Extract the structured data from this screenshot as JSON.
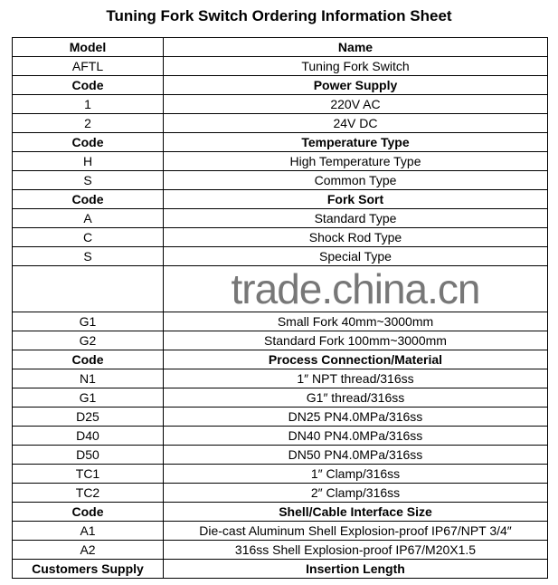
{
  "title": "Tuning Fork Switch Ordering Information Sheet",
  "rows": [
    {
      "code": "Model",
      "name": "Name",
      "bold": true
    },
    {
      "code": "AFTL",
      "name": "Tuning Fork Switch"
    },
    {
      "code": "Code",
      "name": "Power Supply",
      "bold": true
    },
    {
      "code": "1",
      "name": "220V AC"
    },
    {
      "code": "2",
      "name": "24V DC"
    },
    {
      "code": "Code",
      "name": "Temperature Type",
      "bold": true
    },
    {
      "code": "H",
      "name": "High Temperature Type"
    },
    {
      "code": "S",
      "name": "Common Type"
    },
    {
      "code": "Code",
      "name": "Fork Sort",
      "bold": true
    },
    {
      "code": "A",
      "name": "Standard Type"
    },
    {
      "code": "C",
      "name": "Shock Rod Type"
    },
    {
      "code": "S",
      "name": "Special Type"
    },
    {
      "code": "",
      "name": ""
    },
    {
      "code": "G1",
      "name": "Small Fork 40mm~3000mm"
    },
    {
      "code": "G2",
      "name": "Standard Fork 100mm~3000mm"
    },
    {
      "code": "Code",
      "name": "Process Connection/Material",
      "bold": true
    },
    {
      "code": "N1",
      "name": "1″ NPT thread/316ss"
    },
    {
      "code": "G1",
      "name": "G1″ thread/316ss"
    },
    {
      "code": "D25",
      "name": "DN25 PN4.0MPa/316ss"
    },
    {
      "code": "D40",
      "name": "DN40 PN4.0MPa/316ss"
    },
    {
      "code": "D50",
      "name": "DN50 PN4.0MPa/316ss"
    },
    {
      "code": "TC1",
      "name": "1″ Clamp/316ss"
    },
    {
      "code": "TC2",
      "name": "2″ Clamp/316ss"
    },
    {
      "code": "Code",
      "name": "Shell/Cable Interface Size",
      "bold": true
    },
    {
      "code": "A1",
      "name": "Die-cast Aluminum Shell Explosion-proof IP67/NPT 3/4″"
    },
    {
      "code": "A2",
      "name": "316ss Shell Explosion-proof IP67/M20X1.5"
    },
    {
      "code": "Customers Supply",
      "name": "Insertion Length",
      "bold": true
    }
  ],
  "watermark": "trade.china.cn"
}
